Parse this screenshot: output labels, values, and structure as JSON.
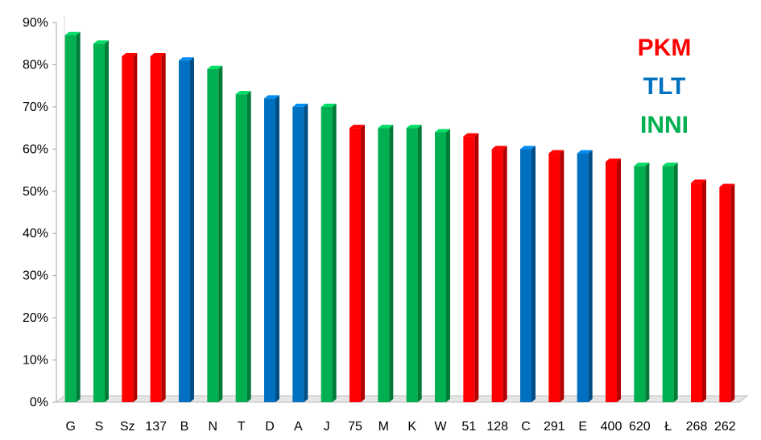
{
  "chart_data": {
    "type": "bar",
    "categories": [
      "G",
      "S",
      "Sz",
      "137",
      "B",
      "N",
      "T",
      "D",
      "A",
      "J",
      "75",
      "M",
      "K",
      "W",
      "51",
      "128",
      "C",
      "291",
      "E",
      "400",
      "620",
      "Ł",
      "268",
      "262"
    ],
    "values": [
      87,
      85,
      82,
      82,
      81,
      79,
      73,
      72,
      70,
      70,
      65,
      65,
      65,
      64,
      63,
      60,
      60,
      59,
      59,
      57,
      56,
      56,
      52,
      51
    ],
    "groups": [
      "INNI",
      "INNI",
      "PKM",
      "PKM",
      "TLT",
      "INNI",
      "INNI",
      "TLT",
      "TLT",
      "INNI",
      "PKM",
      "INNI",
      "INNI",
      "INNI",
      "PKM",
      "PKM",
      "TLT",
      "PKM",
      "TLT",
      "PKM",
      "INNI",
      "INNI",
      "PKM",
      "PKM"
    ],
    "yticks": [
      "0%",
      "10%",
      "20%",
      "30%",
      "40%",
      "50%",
      "60%",
      "70%",
      "80%",
      "90%"
    ],
    "ylim": [
      0,
      90
    ],
    "grid": false,
    "legend_position": "top-right",
    "legend": [
      {
        "label": "PKM",
        "color": "#ff0000"
      },
      {
        "label": "TLT",
        "color": "#0070c0"
      },
      {
        "label": "INNI",
        "color": "#00b050"
      }
    ],
    "colors": {
      "PKM": "#ff0000",
      "TLT": "#0070c0",
      "INNI": "#00b050"
    }
  }
}
